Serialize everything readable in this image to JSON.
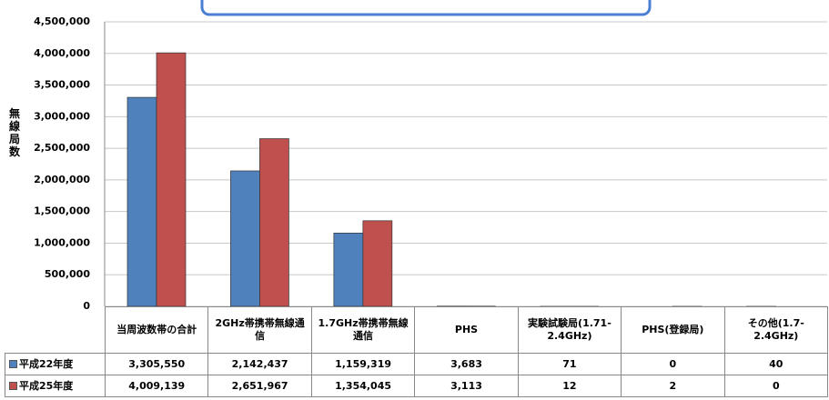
{
  "chart_data": {
    "type": "bar",
    "y_label": "無線局数",
    "categories": [
      "当周波数帯の合計",
      "2GHz帯携帯無線通信",
      "1.7GHz帯携帯無線通信",
      "PHS",
      "実験試験局(1.71-2.4GHz)",
      "PHS(登録局)",
      "その他(1.7-2.4GHz)"
    ],
    "series": [
      {
        "name": "平成22年度",
        "color": "#4f81bd",
        "values": [
          3305550,
          2142437,
          1159319,
          3683,
          71,
          0,
          40
        ],
        "value_labels": [
          "3,305,550",
          "2,142,437",
          "1,159,319",
          "3,683",
          "71",
          "0",
          "40"
        ]
      },
      {
        "name": "平成25年度",
        "color": "#c0504d",
        "values": [
          4009139,
          2651967,
          1354045,
          3113,
          12,
          2,
          0
        ],
        "value_labels": [
          "4,009,139",
          "2,651,967",
          "1,354,045",
          "3,113",
          "12",
          "2",
          "0"
        ]
      }
    ],
    "ylim": [
      0,
      4500000
    ],
    "yticks": [
      0,
      {
        "value": 500000,
        "label": "500,000"
      },
      {
        "value": 1000000,
        "label": "1,000,000"
      },
      {
        "value": 1500000,
        "label": "1,500,000"
      },
      {
        "value": 2000000,
        "label": "2,000,000"
      },
      {
        "value": 2500000,
        "label": "2,500,000"
      },
      {
        "value": 3000000,
        "label": "3,000,000"
      },
      {
        "value": 3500000,
        "label": "3,500,000"
      },
      {
        "value": 4000000,
        "label": "4,000,000"
      },
      {
        "value": 4500000,
        "label": "4,500,000"
      }
    ],
    "grid": true
  }
}
